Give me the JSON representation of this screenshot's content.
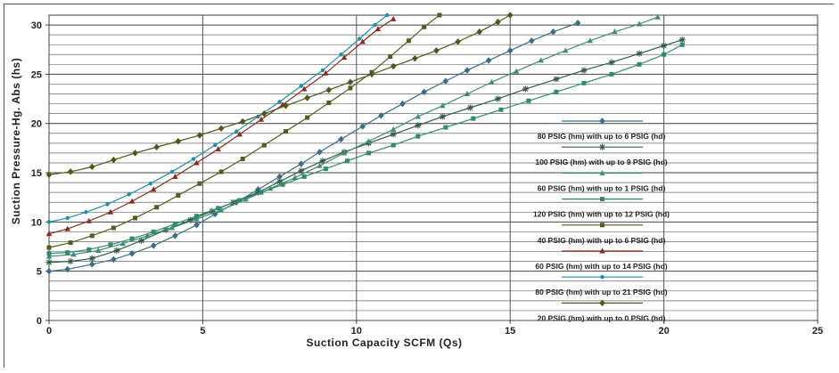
{
  "chart_data": {
    "type": "line",
    "title": "",
    "xlabel": "Suction Capacity SCFM (Qs)",
    "ylabel": "Suction Pressure-Hg. Abs (hs)",
    "xlim": [
      0,
      25
    ],
    "ylim": [
      0,
      31
    ],
    "x_ticks": [
      "0",
      "5",
      "10",
      "15",
      "20",
      "25"
    ],
    "y_ticks": [
      "0",
      "5",
      "10",
      "15",
      "20",
      "25",
      "30"
    ],
    "grid": true,
    "legend_position": "right",
    "series": [
      {
        "name": "80 PSIG (hm) with up to 6 PSIG (hd)",
        "color": "#3a6e86",
        "marker": "diamond",
        "points": [
          [
            0,
            5
          ],
          [
            0.6,
            5.2
          ],
          [
            1.4,
            5.7
          ],
          [
            2.1,
            6.2
          ],
          [
            2.7,
            6.8
          ],
          [
            3.4,
            7.6
          ],
          [
            4.1,
            8.6
          ],
          [
            4.8,
            9.7
          ],
          [
            5.4,
            10.8
          ],
          [
            6.1,
            12.0
          ],
          [
            6.8,
            13.3
          ],
          [
            7.5,
            14.6
          ],
          [
            8.2,
            15.9
          ],
          [
            8.8,
            17.1
          ],
          [
            9.5,
            18.4
          ],
          [
            10.2,
            19.7
          ],
          [
            10.8,
            20.8
          ],
          [
            11.5,
            22.0
          ],
          [
            12.2,
            23.2
          ],
          [
            12.9,
            24.3
          ],
          [
            13.6,
            25.4
          ],
          [
            14.3,
            26.4
          ],
          [
            15.0,
            27.4
          ],
          [
            15.7,
            28.4
          ],
          [
            16.4,
            29.3
          ],
          [
            17.2,
            30.2
          ]
        ]
      },
      {
        "name": "100 PSIG (hm) with up to 9 PSIG (hd)",
        "color": "#2f5b45",
        "marker": "star",
        "points": [
          [
            0,
            5.9
          ],
          [
            0.7,
            6.0
          ],
          [
            1.4,
            6.3
          ],
          [
            2.2,
            7.1
          ],
          [
            3.0,
            8.1
          ],
          [
            3.8,
            9.2
          ],
          [
            4.6,
            10.2
          ],
          [
            5.3,
            11.1
          ],
          [
            6.0,
            12.0
          ],
          [
            6.8,
            13.0
          ],
          [
            7.5,
            14.1
          ],
          [
            8.2,
            15.2
          ],
          [
            8.9,
            16.2
          ],
          [
            9.6,
            17.1
          ],
          [
            10.4,
            18.0
          ],
          [
            11.2,
            18.9
          ],
          [
            12.0,
            19.8
          ],
          [
            12.8,
            20.7
          ],
          [
            13.7,
            21.6
          ],
          [
            14.6,
            22.5
          ],
          [
            15.5,
            23.5
          ],
          [
            16.5,
            24.5
          ],
          [
            17.4,
            25.4
          ],
          [
            18.3,
            26.2
          ],
          [
            19.2,
            27.1
          ],
          [
            20.0,
            27.9
          ],
          [
            20.6,
            28.5
          ]
        ]
      },
      {
        "name": "60 PSIG (hm) with up to 1 PSIG (hd)",
        "color": "#3f8c78",
        "marker": "triangle",
        "points": [
          [
            0,
            6.5
          ],
          [
            0.8,
            6.7
          ],
          [
            1.6,
            7.1
          ],
          [
            2.4,
            7.8
          ],
          [
            3.2,
            8.6
          ],
          [
            4.0,
            9.4
          ],
          [
            4.8,
            10.3
          ],
          [
            5.6,
            11.2
          ],
          [
            6.4,
            12.3
          ],
          [
            7.2,
            13.4
          ],
          [
            8.0,
            14.5
          ],
          [
            8.8,
            15.7
          ],
          [
            9.6,
            17.0
          ],
          [
            10.4,
            18.2
          ],
          [
            11.2,
            19.4
          ],
          [
            12.0,
            20.7
          ],
          [
            12.8,
            21.8
          ],
          [
            13.6,
            23.0
          ],
          [
            14.4,
            24.2
          ],
          [
            15.2,
            25.3
          ],
          [
            16.0,
            26.4
          ],
          [
            16.8,
            27.4
          ],
          [
            17.6,
            28.4
          ],
          [
            18.4,
            29.3
          ],
          [
            19.2,
            30.1
          ],
          [
            19.8,
            30.8
          ]
        ]
      },
      {
        "name": "120 PSIG (hm) with up to 12 PSIG (hd)",
        "color": "#2e8b6e",
        "marker": "square",
        "points": [
          [
            0,
            6.8
          ],
          [
            0.6,
            6.9
          ],
          [
            1.3,
            7.2
          ],
          [
            2.0,
            7.7
          ],
          [
            2.7,
            8.3
          ],
          [
            3.4,
            9.0
          ],
          [
            4.1,
            9.8
          ],
          [
            4.8,
            10.6
          ],
          [
            5.5,
            11.4
          ],
          [
            6.2,
            12.2
          ],
          [
            6.9,
            13.0
          ],
          [
            7.6,
            13.8
          ],
          [
            8.3,
            14.6
          ],
          [
            9.0,
            15.4
          ],
          [
            9.7,
            16.2
          ],
          [
            10.4,
            17.0
          ],
          [
            11.2,
            17.8
          ],
          [
            12.0,
            18.7
          ],
          [
            12.9,
            19.6
          ],
          [
            13.8,
            20.5
          ],
          [
            14.7,
            21.4
          ],
          [
            15.6,
            22.3
          ],
          [
            16.5,
            23.2
          ],
          [
            17.4,
            24.1
          ],
          [
            18.3,
            25.0
          ],
          [
            19.2,
            26.0
          ],
          [
            20.0,
            27.0
          ],
          [
            20.6,
            28.0
          ]
        ]
      },
      {
        "name": "40 PSIG (hm) with up to 6 PSIG (hd)",
        "color": "#5a5a1e",
        "marker": "square",
        "points": [
          [
            0,
            7.4
          ],
          [
            0.7,
            7.9
          ],
          [
            1.4,
            8.6
          ],
          [
            2.1,
            9.4
          ],
          [
            2.8,
            10.4
          ],
          [
            3.5,
            11.5
          ],
          [
            4.2,
            12.7
          ],
          [
            4.9,
            13.9
          ],
          [
            5.6,
            15.1
          ],
          [
            6.3,
            16.4
          ],
          [
            7.0,
            17.8
          ],
          [
            7.7,
            19.2
          ],
          [
            8.4,
            20.6
          ],
          [
            9.1,
            22.1
          ],
          [
            9.8,
            23.6
          ],
          [
            10.5,
            25.2
          ],
          [
            11.1,
            26.8
          ],
          [
            11.7,
            28.4
          ],
          [
            12.2,
            29.8
          ],
          [
            12.7,
            31.0
          ]
        ]
      },
      {
        "name": "60 PSIG (hm) with up to 14 PSIG (hd)",
        "color": "#8c2a1c",
        "marker": "triangle",
        "points": [
          [
            0,
            8.8
          ],
          [
            0.6,
            9.3
          ],
          [
            1.3,
            10.1
          ],
          [
            2.0,
            11.0
          ],
          [
            2.7,
            12.1
          ],
          [
            3.4,
            13.3
          ],
          [
            4.1,
            14.6
          ],
          [
            4.8,
            16.0
          ],
          [
            5.5,
            17.4
          ],
          [
            6.2,
            18.9
          ],
          [
            6.9,
            20.4
          ],
          [
            7.6,
            21.9
          ],
          [
            8.3,
            23.5
          ],
          [
            9.0,
            25.1
          ],
          [
            9.6,
            26.7
          ],
          [
            10.2,
            28.3
          ],
          [
            10.7,
            29.6
          ],
          [
            11.2,
            30.6
          ]
        ]
      },
      {
        "name": "80 PSIG (hm) with up to 21 PSIG (hd)",
        "color": "#1f8fa8",
        "marker": "circle",
        "points": [
          [
            0,
            10.0
          ],
          [
            0.6,
            10.4
          ],
          [
            1.2,
            11.0
          ],
          [
            1.9,
            11.8
          ],
          [
            2.6,
            12.8
          ],
          [
            3.3,
            13.9
          ],
          [
            4.0,
            15.1
          ],
          [
            4.7,
            16.4
          ],
          [
            5.4,
            17.8
          ],
          [
            6.1,
            19.2
          ],
          [
            6.8,
            20.7
          ],
          [
            7.5,
            22.2
          ],
          [
            8.2,
            23.8
          ],
          [
            8.9,
            25.4
          ],
          [
            9.5,
            27.0
          ],
          [
            10.1,
            28.6
          ],
          [
            10.6,
            30.0
          ],
          [
            11.0,
            31.0
          ]
        ]
      },
      {
        "name": "20 PSIG (hm) with up to 0 PSIG (hd)",
        "color": "#4a5a1a",
        "marker": "diamond",
        "points": [
          [
            0,
            14.8
          ],
          [
            0.7,
            15.1
          ],
          [
            1.4,
            15.6
          ],
          [
            2.1,
            16.3
          ],
          [
            2.8,
            17.0
          ],
          [
            3.5,
            17.6
          ],
          [
            4.2,
            18.2
          ],
          [
            4.9,
            18.8
          ],
          [
            5.6,
            19.5
          ],
          [
            6.3,
            20.2
          ],
          [
            7.0,
            21.0
          ],
          [
            7.7,
            21.8
          ],
          [
            8.4,
            22.6
          ],
          [
            9.1,
            23.4
          ],
          [
            9.8,
            24.2
          ],
          [
            10.5,
            25.0
          ],
          [
            11.2,
            25.8
          ],
          [
            11.9,
            26.6
          ],
          [
            12.6,
            27.4
          ],
          [
            13.3,
            28.3
          ],
          [
            14.0,
            29.3
          ],
          [
            14.6,
            30.3
          ],
          [
            15.0,
            31.0
          ]
        ]
      }
    ]
  }
}
